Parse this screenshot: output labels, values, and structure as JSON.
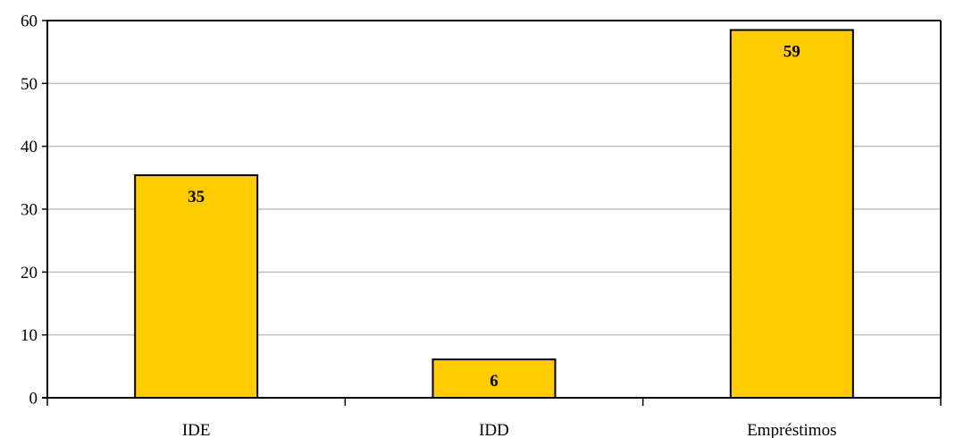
{
  "chart_data": {
    "type": "bar",
    "categories": [
      "IDE",
      "IDD",
      "Empréstimos"
    ],
    "values": [
      35.4,
      6.1,
      58.5
    ],
    "data_labels": [
      "35",
      "6",
      "59"
    ],
    "ylim": [
      0,
      60
    ],
    "yticks": [
      "0",
      "10",
      "20",
      "30",
      "40",
      "50",
      "60"
    ],
    "grid": true,
    "legend": "none",
    "title": "",
    "xlabel": "",
    "ylabel": "",
    "colors": {
      "bar_fill": "#FFCC00",
      "bar_stroke": "#000000",
      "grid": "#BFBFBF",
      "axis": "#000000"
    }
  }
}
